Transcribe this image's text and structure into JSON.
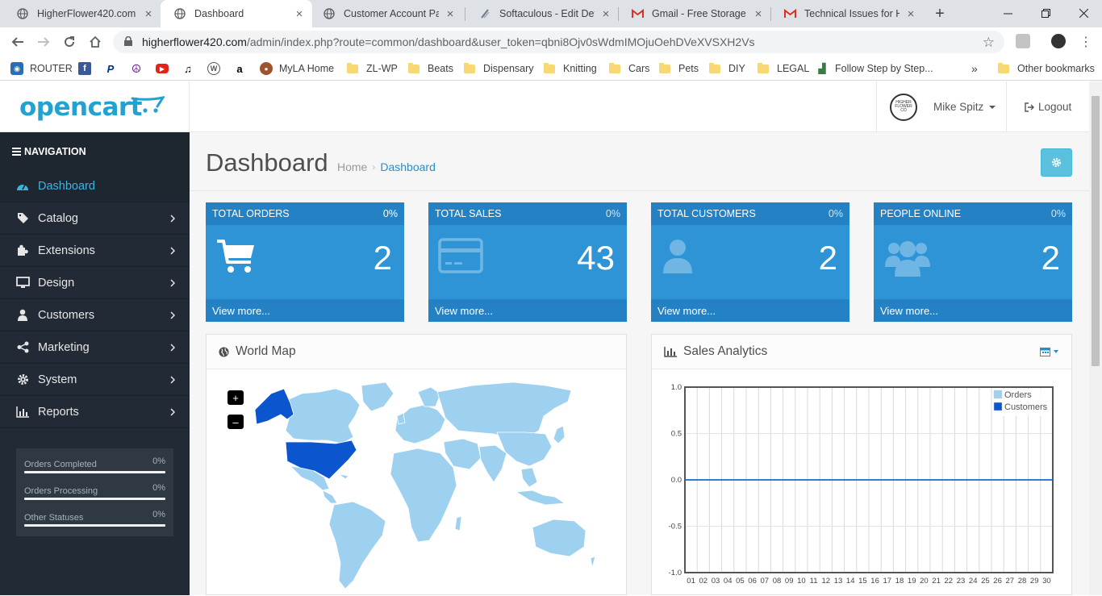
{
  "browser": {
    "tabs": [
      {
        "title": "HigherFlower420.com",
        "active": false
      },
      {
        "title": "Dashboard",
        "active": true
      },
      {
        "title": "Customer Account Page",
        "active": false
      },
      {
        "title": "Softaculous - Edit Detail",
        "active": false
      },
      {
        "title": "Gmail - Free Storage and",
        "active": false
      },
      {
        "title": "Technical Issues for Hig",
        "active": false
      }
    ],
    "url_host": "higherflower420.com",
    "url_rest": "/admin/index.php?route=common/dashboard&user_token=qbni8Ojv0sWdmIMOjuOehDVeXVSXH2Vs",
    "bookmarks": [
      "ROUTER",
      "MyLA Home",
      "ZL-WP",
      "Beats",
      "Dispensary",
      "Knitting",
      "Cars",
      "Pets",
      "DIY",
      "LEGAL",
      "Follow Step by Step...",
      "»",
      "Other bookmarks"
    ]
  },
  "header": {
    "logo": "opencart",
    "avatar_text": "HIGHER FLOWER CO",
    "user_name": "Mike Spitz",
    "logout": "Logout"
  },
  "sidebar": {
    "title": "NAVIGATION",
    "items": [
      {
        "label": "Dashboard",
        "active": true
      },
      {
        "label": "Catalog"
      },
      {
        "label": "Extensions"
      },
      {
        "label": "Design"
      },
      {
        "label": "Customers"
      },
      {
        "label": "Marketing"
      },
      {
        "label": "System"
      },
      {
        "label": "Reports"
      }
    ],
    "stats": [
      {
        "label": "Orders Completed",
        "value": "0%"
      },
      {
        "label": "Orders Processing",
        "value": "0%"
      },
      {
        "label": "Other Statuses",
        "value": "0%"
      }
    ]
  },
  "page": {
    "title": "Dashboard",
    "breadcrumb": [
      "Home",
      "Dashboard"
    ]
  },
  "tiles": [
    {
      "title": "TOTAL ORDERS",
      "pct": "0%",
      "value": "2",
      "footer": "View more...",
      "icon": "cart-icon"
    },
    {
      "title": "TOTAL SALES",
      "pct": "0%",
      "value": "43",
      "footer": "View more...",
      "icon": "credit-card-icon"
    },
    {
      "title": "TOTAL CUSTOMERS",
      "pct": "0%",
      "value": "2",
      "footer": "View more...",
      "icon": "user-icon"
    },
    {
      "title": "PEOPLE ONLINE",
      "pct": "0%",
      "value": "2",
      "footer": "View more...",
      "icon": "users-icon"
    }
  ],
  "map_panel": {
    "title": "World Map",
    "zoom_in": "+",
    "zoom_out": "–"
  },
  "chart_panel": {
    "title": "Sales Analytics"
  },
  "colors": {
    "accent": "#23a1d1",
    "tile": "#2f94d6",
    "tile_dark": "#2482c4",
    "sidebar": "#222b35",
    "map_land": "#9ed1f0",
    "map_highlight": "#0b56cf"
  },
  "chart_data": {
    "type": "line",
    "x": [
      "01",
      "02",
      "03",
      "04",
      "05",
      "06",
      "07",
      "08",
      "09",
      "10",
      "11",
      "12",
      "13",
      "14",
      "15",
      "16",
      "17",
      "18",
      "19",
      "20",
      "21",
      "22",
      "23",
      "24",
      "25",
      "26",
      "27",
      "28",
      "29",
      "30"
    ],
    "series": [
      {
        "name": "Orders",
        "color": "#9ed1f0",
        "values": [
          0,
          0,
          0,
          0,
          0,
          0,
          0,
          0,
          0,
          0,
          0,
          0,
          0,
          0,
          0,
          0,
          0,
          0,
          0,
          0,
          0,
          0,
          0,
          0,
          0,
          0,
          0,
          0,
          0,
          0
        ]
      },
      {
        "name": "Customers",
        "color": "#0b56cf",
        "values": [
          0,
          0,
          0,
          0,
          0,
          0,
          0,
          0,
          0,
          0,
          0,
          0,
          0,
          0,
          0,
          0,
          0,
          0,
          0,
          0,
          0,
          0,
          0,
          0,
          0,
          0,
          0,
          0,
          0,
          0
        ]
      }
    ],
    "yticks": [
      "1.0",
      "0.5",
      "0.0",
      "-0.5",
      "-1.0"
    ],
    "ylim": [
      -1,
      1
    ],
    "legend_position": "top-right",
    "grid": true
  }
}
